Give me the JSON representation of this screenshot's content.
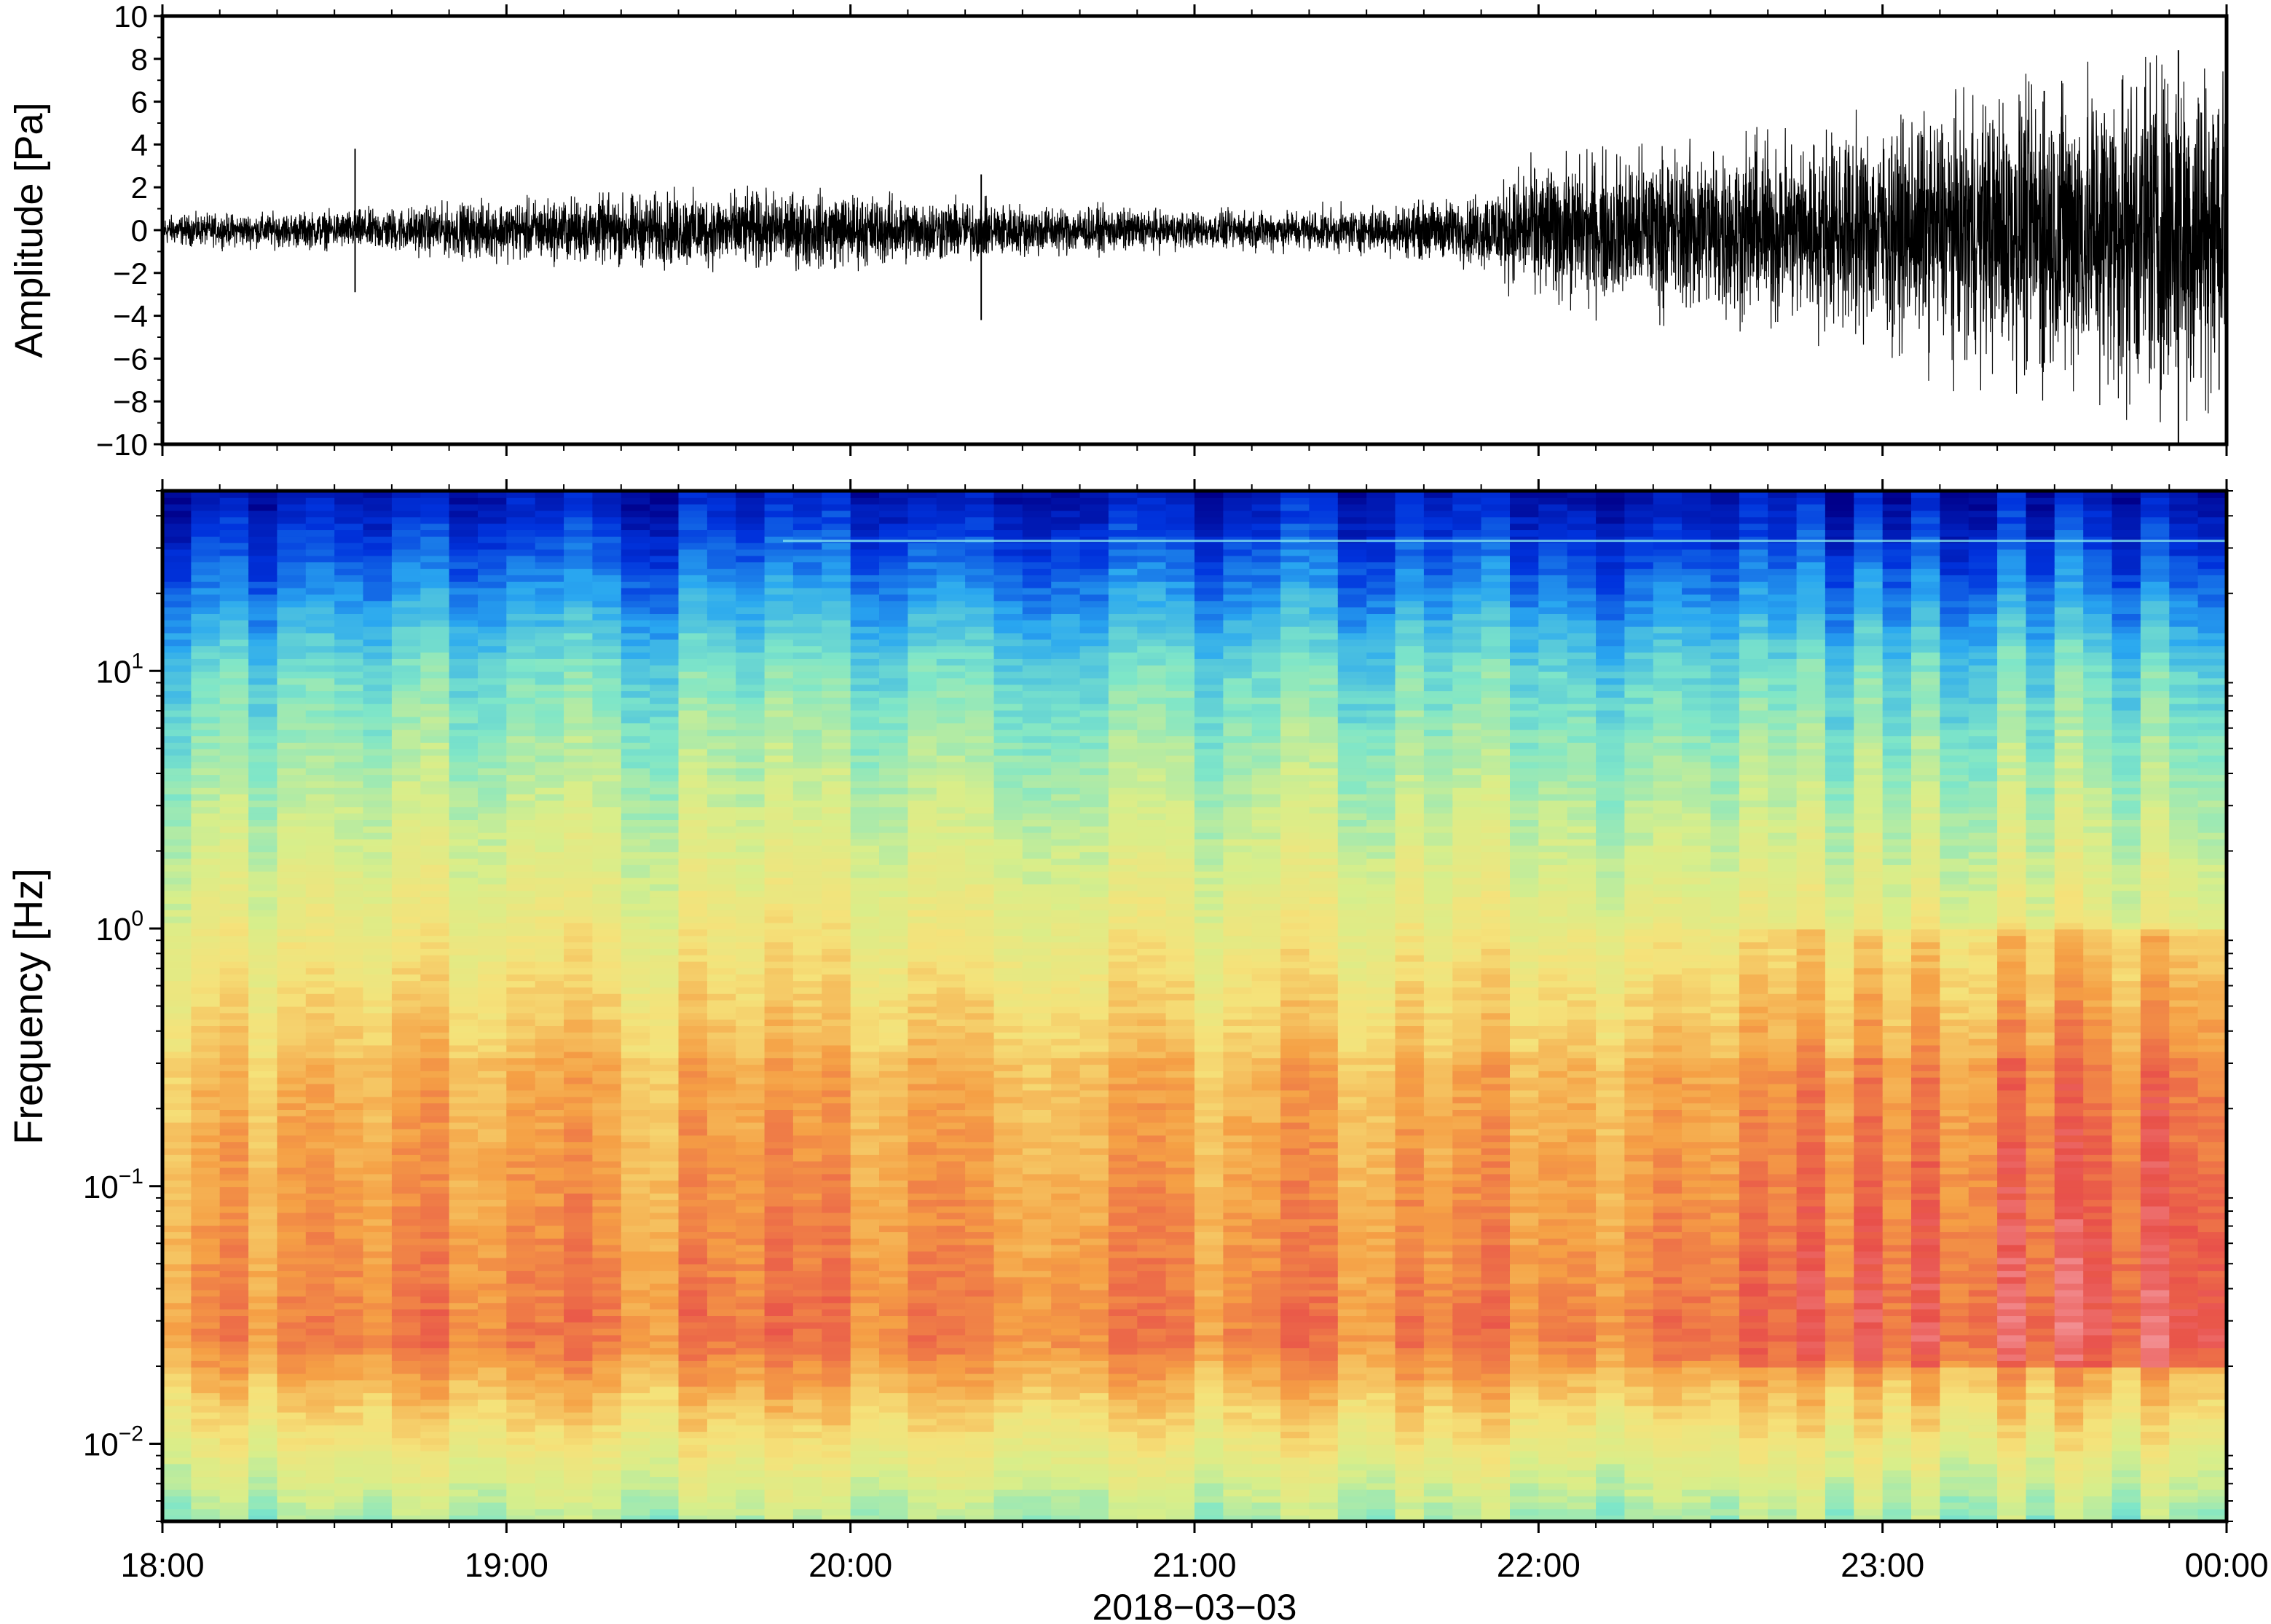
{
  "figure": {
    "date_label": "2018−03−03"
  },
  "chart_data": [
    {
      "type": "line",
      "panel": "waveform",
      "ylabel": "Amplitude [Pa]",
      "xlabel": "",
      "ylim": [
        -10,
        10
      ],
      "yticks": [
        -10,
        -8,
        -6,
        -4,
        -2,
        0,
        2,
        4,
        6,
        8,
        10
      ],
      "ytick_labels": [
        "−10",
        "−8",
        "−6",
        "−4",
        "−2",
        "0",
        "2",
        "4",
        "6",
        "8",
        "10"
      ],
      "xlim": [
        "18:00",
        "00:00"
      ],
      "x_unit": "hours since 18:00 on 2018-03-03",
      "line_color": "#000000",
      "envelope": {
        "x_hours": [
          0,
          0.5,
          1,
          1.5,
          2,
          2.5,
          3,
          3.5,
          3.8,
          4,
          4.5,
          5,
          5.5,
          5.9,
          6
        ],
        "amplitude_pa": [
          0.4,
          0.5,
          0.8,
          1.0,
          1.0,
          0.7,
          0.5,
          0.6,
          0.9,
          1.8,
          2.3,
          2.8,
          4.0,
          5.0,
          4.0
        ]
      },
      "spikes": [
        {
          "x_hours": 0.56,
          "max": 3.8,
          "min": -2.9
        },
        {
          "x_hours": 2.38,
          "max": 2.6,
          "min": -4.2
        },
        {
          "x_hours": 5.47,
          "max": 6.5,
          "min": -6.2
        },
        {
          "x_hours": 5.86,
          "max": 8.4,
          "min": -10.0
        }
      ]
    },
    {
      "type": "heatmap",
      "panel": "spectrogram",
      "ylabel": "Frequency [Hz]",
      "xlabel": "2018−03−03",
      "y_scale": "log",
      "ylim_hz": [
        0.005,
        50
      ],
      "yticks": [
        {
          "value": 0.01,
          "base": "10",
          "exp": "−2"
        },
        {
          "value": 0.1,
          "base": "10",
          "exp": "−1"
        },
        {
          "value": 1,
          "base": "10",
          "exp": "0"
        },
        {
          "value": 10,
          "base": "10",
          "exp": "1"
        }
      ],
      "xticks": [
        "18:00",
        "19:00",
        "20:00",
        "21:00",
        "22:00",
        "23:00",
        "00:00"
      ],
      "colormap": [
        "#00008a",
        "#0033dd",
        "#2aa8f0",
        "#7fe6c8",
        "#d8ee8a",
        "#f5e27a",
        "#f5a045",
        "#e8504a",
        "#f8b0b8"
      ],
      "time_columns": 72,
      "peak_band_hz": [
        0.03,
        0.1
      ],
      "tonal_line_hz": 32
    }
  ]
}
